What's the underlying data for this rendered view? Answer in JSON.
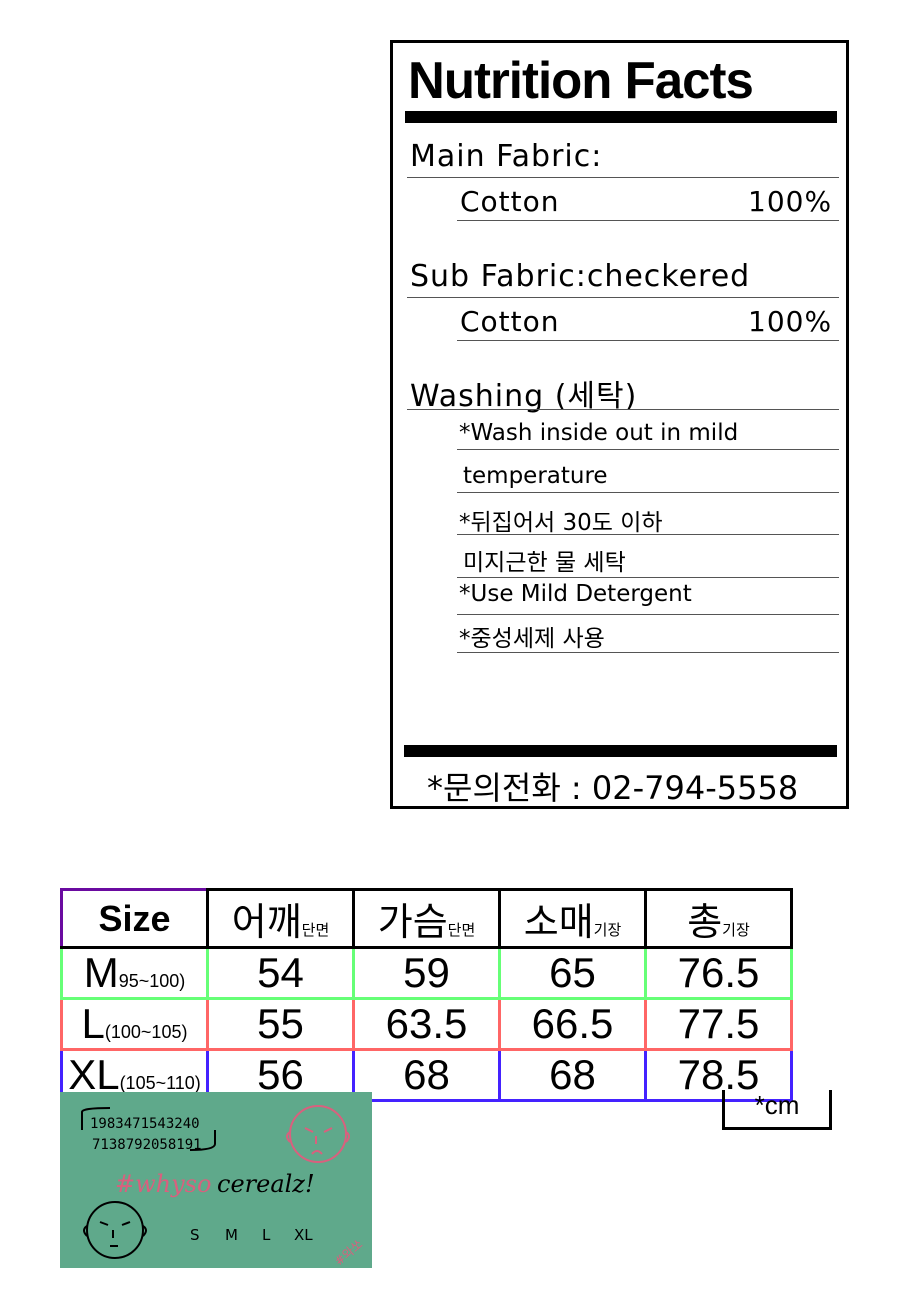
{
  "nutrition": {
    "title": "Nutrition Facts",
    "main_fabric_label": "Main Fabric:",
    "main_fabric": {
      "name": "Cotton",
      "percent": "100%"
    },
    "sub_fabric_label": "Sub Fabric:checkered",
    "sub_fabric": {
      "name": "Cotton",
      "percent": "100%"
    },
    "washing_label": "Washing (세탁)",
    "washing_lines": [
      "*Wash inside out in mild",
      " temperature",
      "*뒤집어서 30도 이하",
      " 미지근한 물 세탁",
      "*Use Mild Detergent",
      "*중성세제 사용"
    ],
    "phone": "*문의전화 : 02-794-5558"
  },
  "size_table": {
    "headers": [
      {
        "main": "Size",
        "sub": ""
      },
      {
        "main": "어깨",
        "sub": "단면"
      },
      {
        "main": "가슴",
        "sub": "단면"
      },
      {
        "main": "소매",
        "sub": "기장"
      },
      {
        "main": "총",
        "sub": "기장"
      }
    ],
    "rows": [
      {
        "size": "M",
        "range": "95~100)",
        "values": [
          "54",
          "59",
          "65",
          "76.5"
        ],
        "color": "#66ff77"
      },
      {
        "size": "L",
        "range": "(100~105)",
        "values": [
          "55",
          "63.5",
          "66.5",
          "77.5"
        ],
        "color": "#ff6666"
      },
      {
        "size": "XL",
        "range": "(105~110)",
        "values": [
          "56",
          "68",
          "68",
          "78.5"
        ],
        "color": "#4422ff"
      }
    ],
    "unit": "*cm"
  },
  "label_image": {
    "numbers_1": "1983471543240",
    "numbers_2": "7138792058191",
    "hashtag_pink": "#whyso",
    "hashtag_black": "cerealz!",
    "sizes": [
      "S",
      "M",
      "L",
      "XL"
    ],
    "stamp": "#와쏘",
    "background": "#5fa98b",
    "accent": "#d9607e"
  }
}
